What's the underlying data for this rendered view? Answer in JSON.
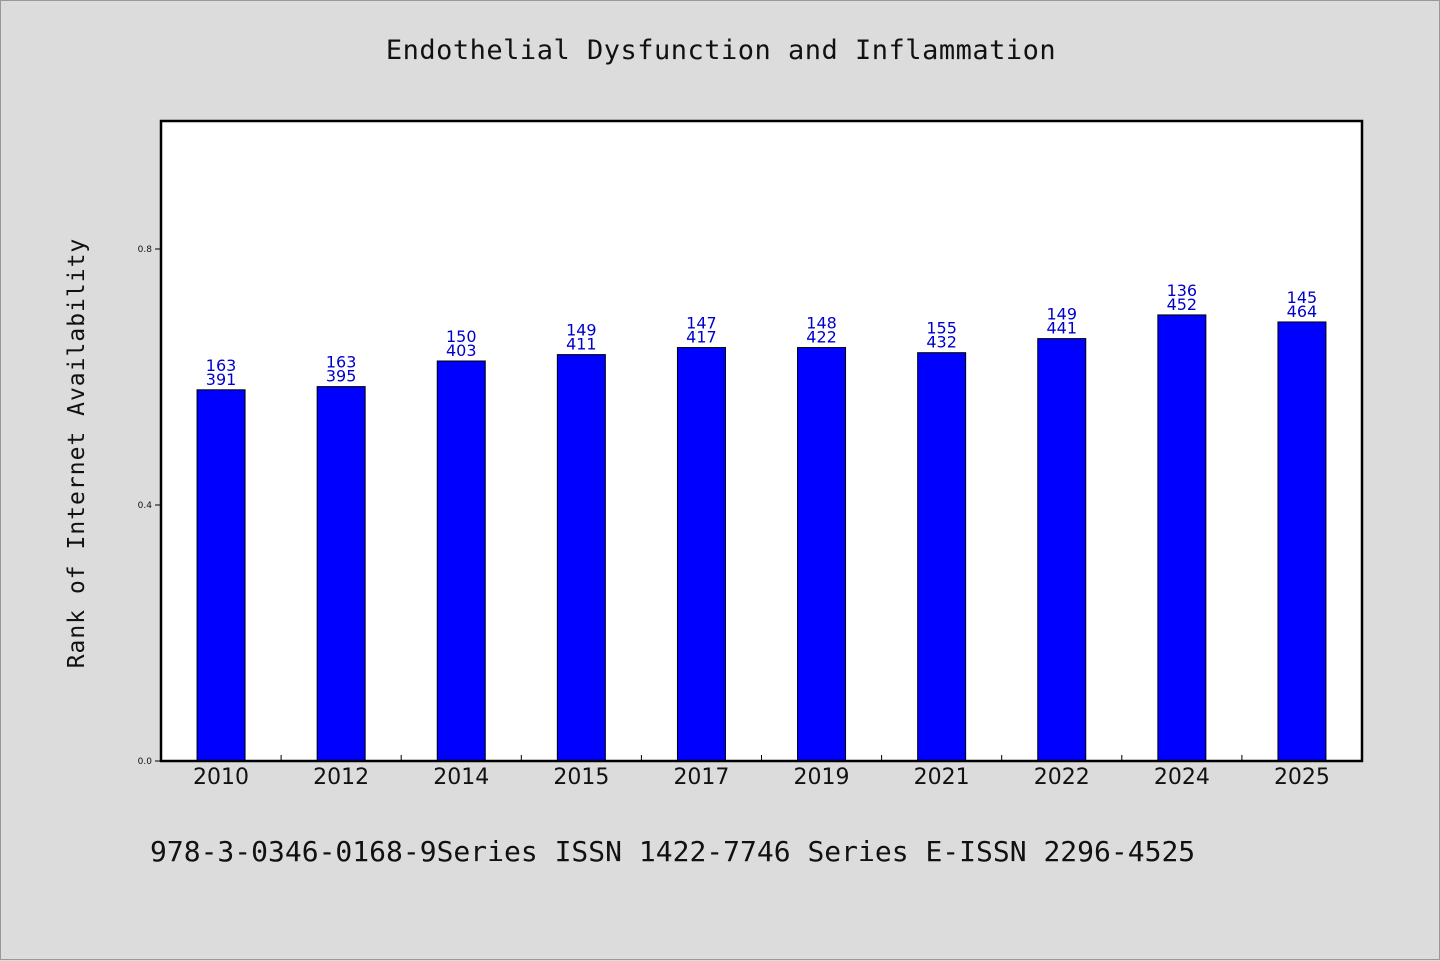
{
  "chart_data": {
    "type": "bar",
    "title": "Endothelial Dysfunction and Inflammation",
    "xlabel": "",
    "ylabel": "Rank of Internet Availability",
    "categories": [
      "2010",
      "2012",
      "2014",
      "2015",
      "2017",
      "2019",
      "2021",
      "2022",
      "2024",
      "2025"
    ],
    "series": [
      {
        "values": [
          0.58,
          0.585,
          0.625,
          0.635,
          0.646,
          0.646,
          0.638,
          0.66,
          0.697,
          0.686
        ]
      }
    ],
    "data_labels": {
      "upper": [
        "163",
        "163",
        "150",
        "149",
        "147",
        "148",
        "155",
        "149",
        "136",
        "145"
      ],
      "lower": [
        "391",
        "395",
        "403",
        "411",
        "417",
        "422",
        "432",
        "441",
        "452",
        "464"
      ]
    },
    "yticks": [
      "0.0",
      "0.4",
      "0.8"
    ],
    "ytick_values": [
      0.0,
      0.4,
      0.8
    ],
    "ylim": [
      0,
      1.0
    ],
    "grid": false,
    "legend": "none",
    "bar_color": "#0000ff",
    "label_color": "#0000cc",
    "plot_background": "#ffffff",
    "page_background": "#dcdcdc"
  },
  "footer": {
    "text": "978-3-0346-0168-9Series ISSN 1422-7746 Series E-ISSN 2296-4525"
  }
}
